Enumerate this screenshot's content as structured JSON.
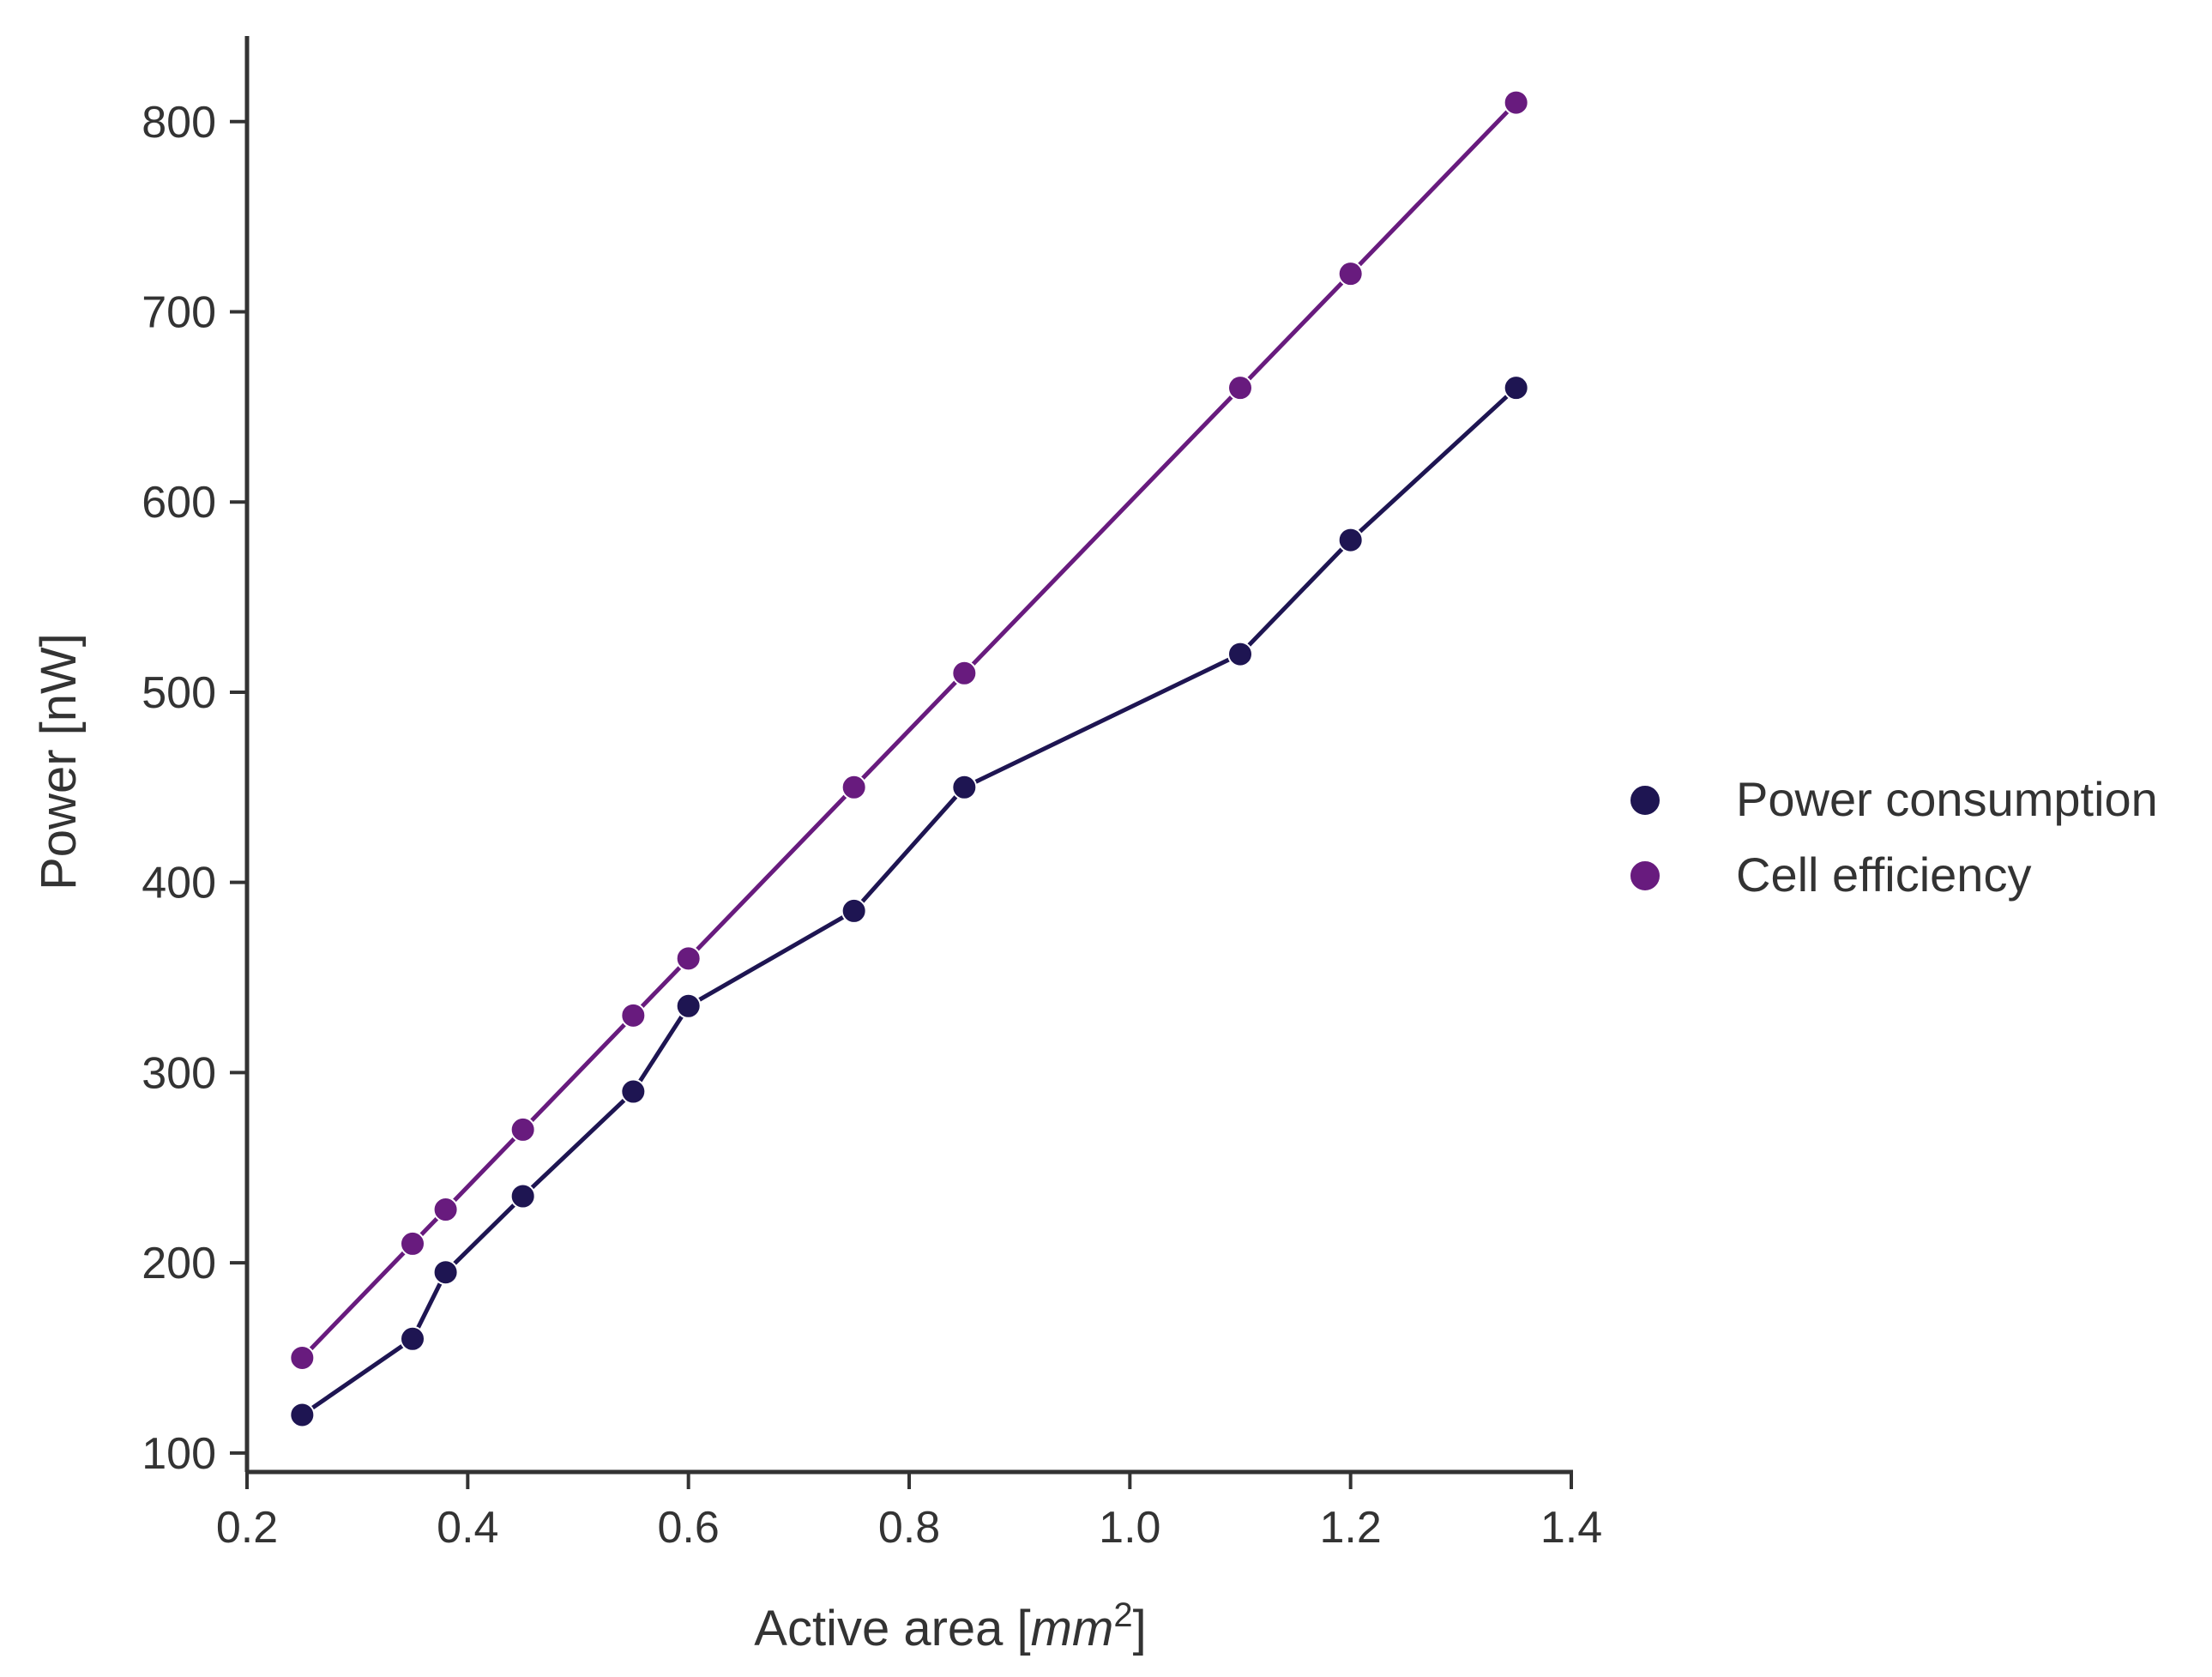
{
  "chart_data": {
    "type": "line",
    "title": "",
    "xlabel_prefix": "Active area [",
    "xlabel_math": "mm",
    "xlabel_exp": "2",
    "xlabel_suffix": "]",
    "ylabel": "Power [nW]",
    "xlim": [
      0.2,
      1.4
    ],
    "ylim": [
      90,
      845
    ],
    "xticks": [
      0.2,
      0.4,
      0.6,
      0.8,
      1.0,
      1.2,
      1.4
    ],
    "xtick_labels": [
      "0.2",
      "0.4",
      "0.6",
      "0.8",
      "1.0",
      "1.2",
      "1.4"
    ],
    "yticks": [
      100,
      200,
      300,
      400,
      500,
      600,
      700,
      800
    ],
    "ytick_labels": [
      "100",
      "200",
      "300",
      "400",
      "500",
      "600",
      "700",
      "800"
    ],
    "grid": false,
    "legend_position": "right",
    "series": [
      {
        "name": "Power consumption",
        "color": "#1e1552",
        "x": [
          0.25,
          0.35,
          0.38,
          0.45,
          0.55,
          0.6,
          0.75,
          0.85,
          1.1,
          1.2,
          1.35
        ],
        "y": [
          120,
          160,
          195,
          235,
          290,
          335,
          385,
          450,
          520,
          580,
          660
        ]
      },
      {
        "name": "Cell efficiency",
        "color": "#681b7e",
        "x": [
          0.25,
          0.35,
          0.38,
          0.45,
          0.55,
          0.6,
          0.75,
          0.85,
          1.1,
          1.2,
          1.35
        ],
        "y": [
          150,
          210,
          228,
          270,
          330,
          360,
          450,
          510,
          660,
          720,
          810
        ]
      }
    ]
  }
}
